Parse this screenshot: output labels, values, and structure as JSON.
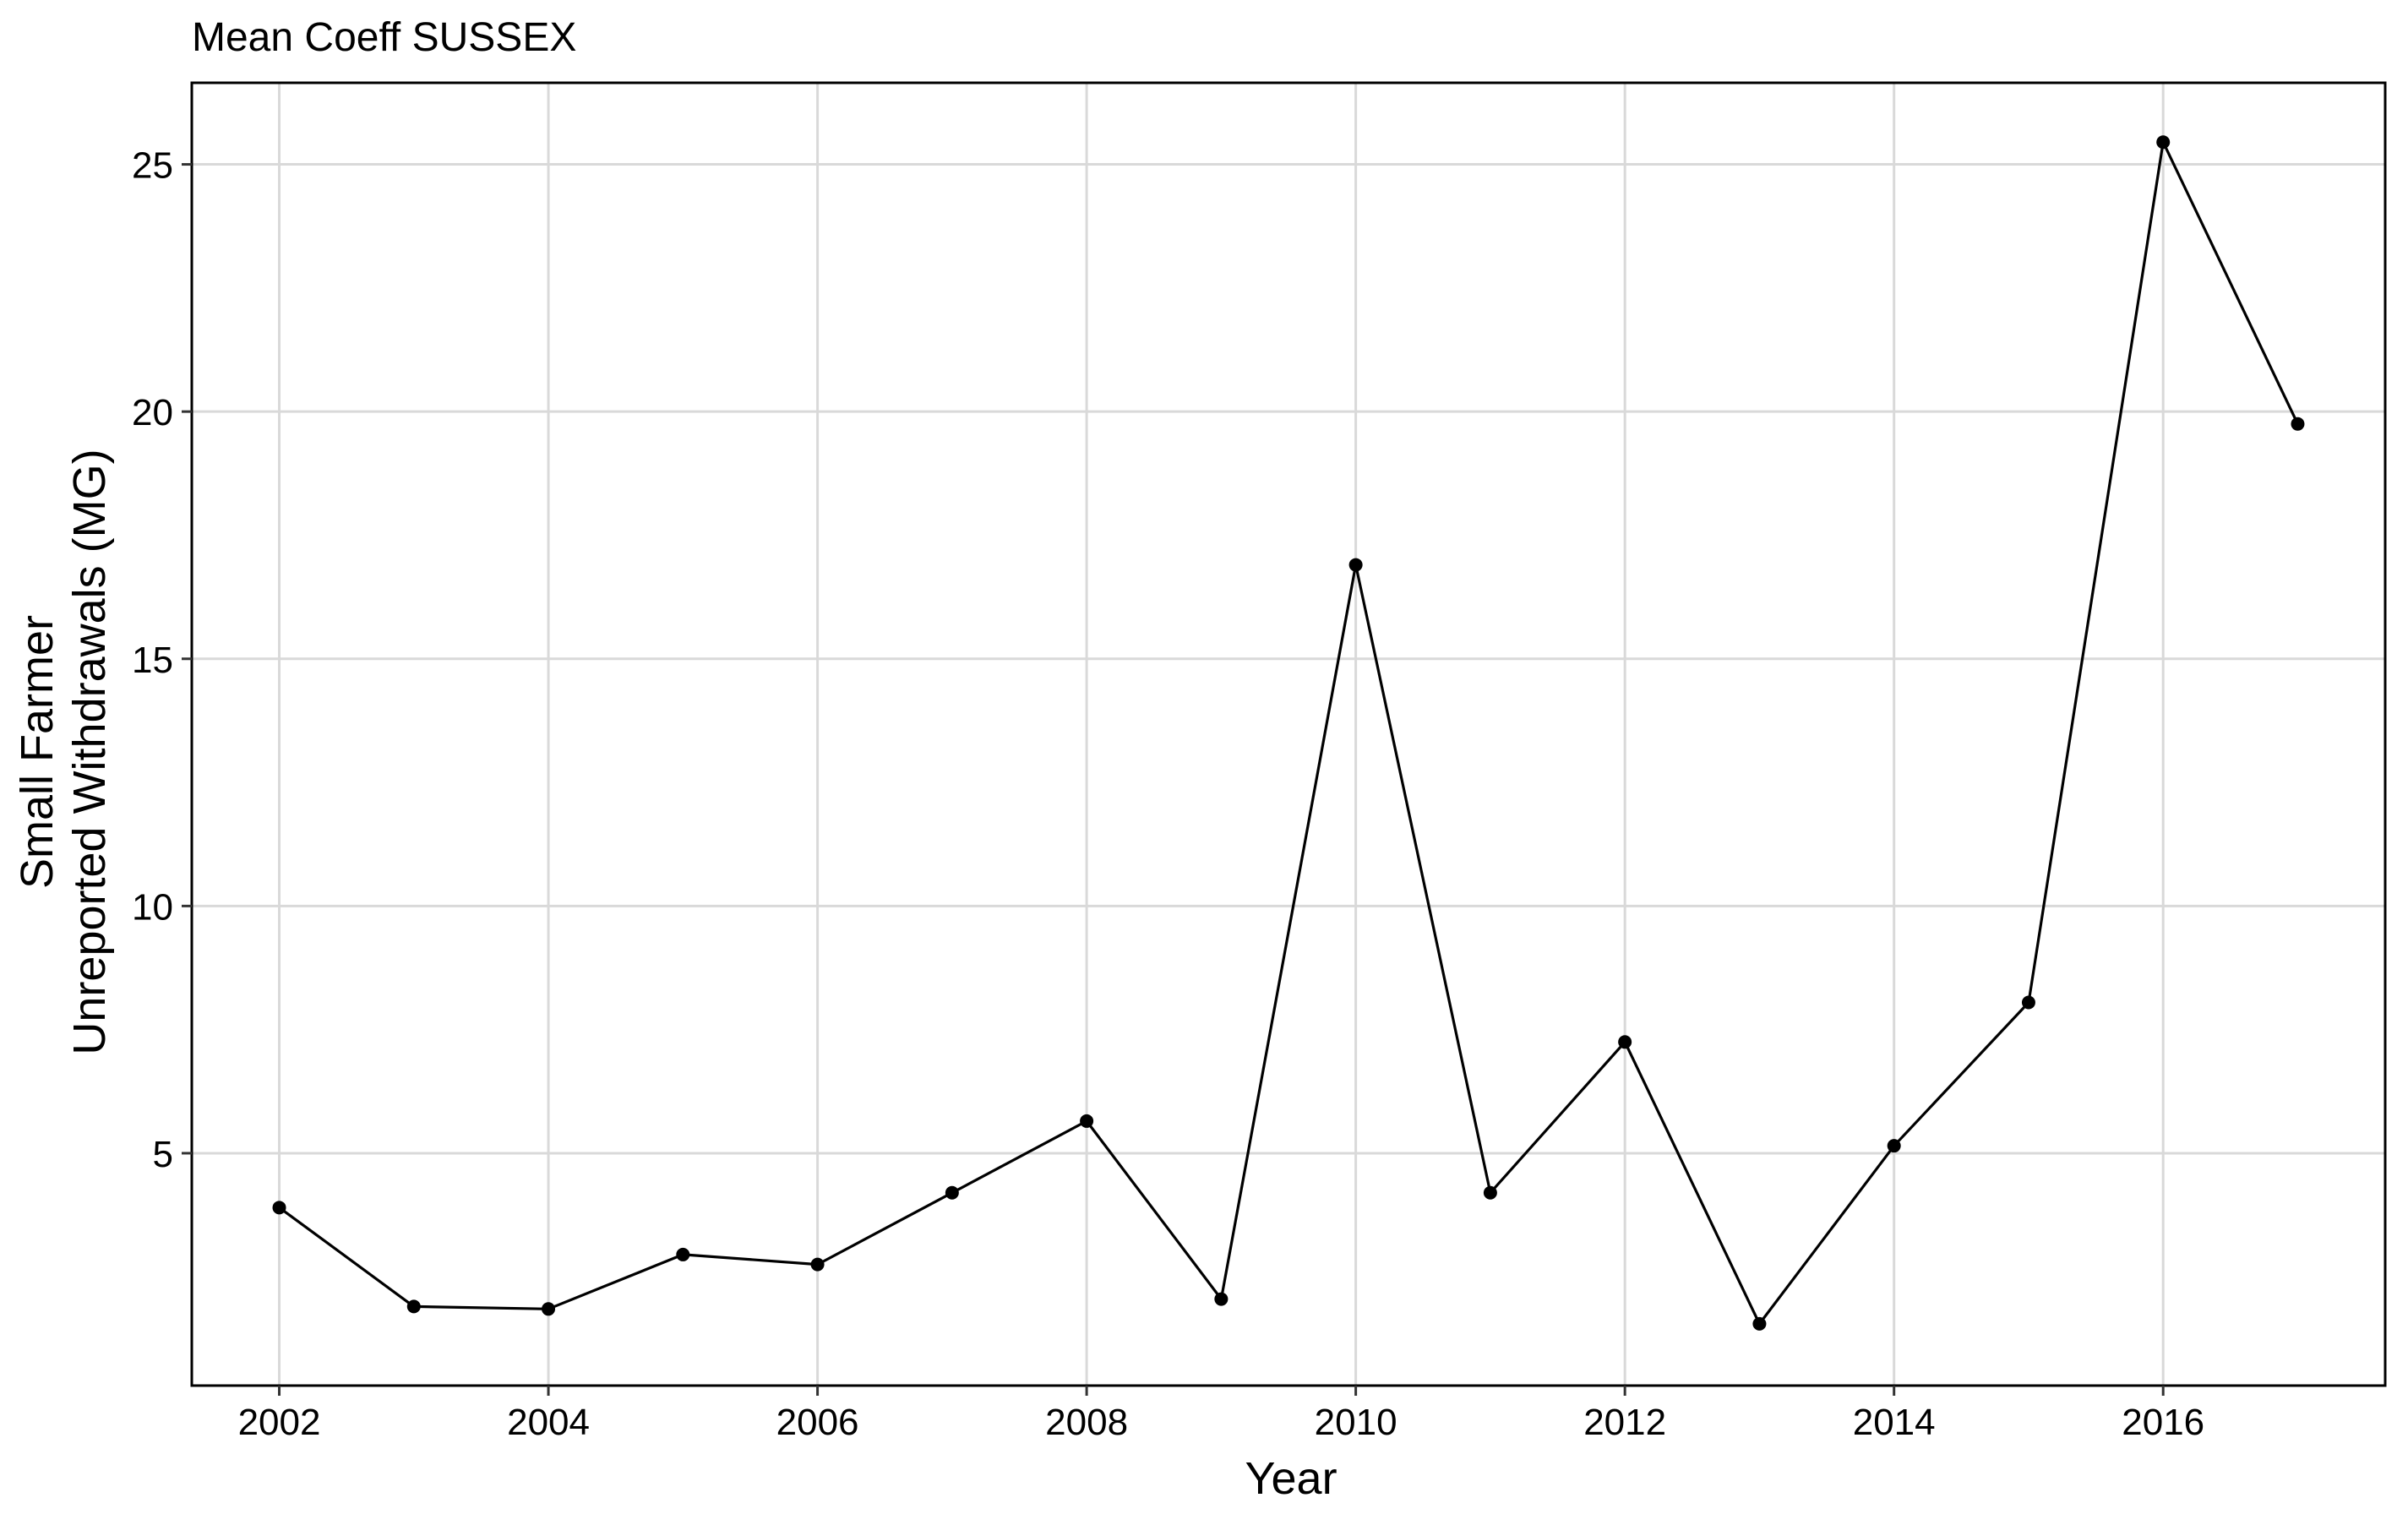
{
  "chart_data": {
    "type": "line",
    "title": "Mean Coeff SUSSEX",
    "xlabel": "Year",
    "ylabel_lines": [
      "Small Farmer",
      "Unreported Withdrawals (MG)"
    ],
    "x": [
      2002,
      2003,
      2004,
      2005,
      2006,
      2007,
      2008,
      2009,
      2010,
      2011,
      2012,
      2013,
      2014,
      2015,
      2016,
      2017
    ],
    "series": [
      {
        "values": [
          3.9,
          1.9,
          1.85,
          2.95,
          2.75,
          4.2,
          5.65,
          2.05,
          16.9,
          4.2,
          7.25,
          1.55,
          5.15,
          8.05,
          25.45,
          19.75
        ]
      }
    ],
    "xticks": [
      2002,
      2004,
      2006,
      2008,
      2010,
      2012,
      2014,
      2016
    ],
    "xtick_labels": [
      "2002",
      "2004",
      "2006",
      "2008",
      "2010",
      "2012",
      "2014",
      "2016"
    ],
    "yticks": [
      5,
      10,
      15,
      20,
      25
    ],
    "ytick_labels": [
      "5",
      "10",
      "15",
      "20",
      "25"
    ],
    "xlim": [
      2001.35,
      2017.65
    ],
    "ylim": [
      0.3,
      26.65
    ],
    "grid": true,
    "legend": "none",
    "colors": {
      "line": "#000000",
      "point": "#000000",
      "grid": "#d9d9d9",
      "frame": "#000000",
      "background": "#ffffff"
    }
  }
}
